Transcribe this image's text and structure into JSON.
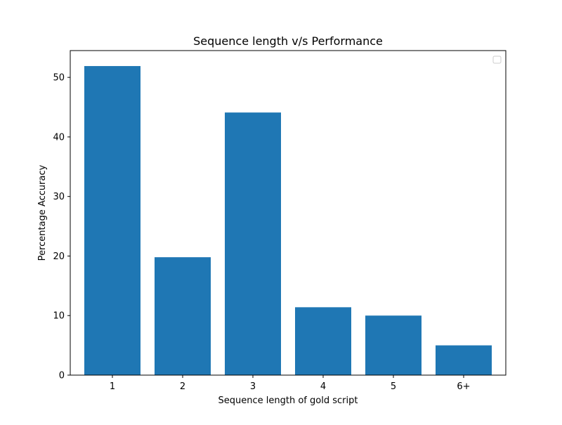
{
  "chart_data": {
    "type": "bar",
    "title": "Sequence length v/s Performance",
    "xlabel": "Sequence length of gold script",
    "ylabel": "Percentage Accuracy",
    "categories": [
      "1",
      "2",
      "3",
      "4",
      "5",
      "6+"
    ],
    "values": [
      51.9,
      19.8,
      44.1,
      11.4,
      10.0,
      5.0
    ],
    "ylim": [
      0,
      54.5
    ],
    "yticks": [
      0,
      10,
      20,
      30,
      40,
      50
    ],
    "bar_color": "#1f77b4",
    "grid": false,
    "legend": {
      "placement": "top-right",
      "entries": []
    }
  }
}
